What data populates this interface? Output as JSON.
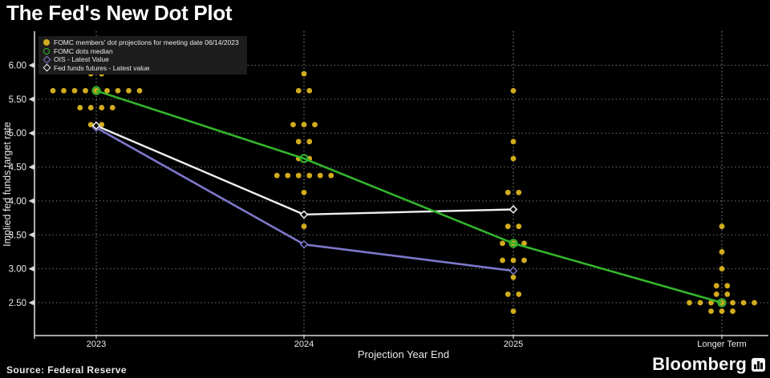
{
  "title": "The Fed's New Dot Plot",
  "source": "Source: Federal Reserve",
  "brand": {
    "name": "Bloomberg"
  },
  "colors": {
    "background": "#000000",
    "dot_yellow": "#d2ac1d",
    "median_green": "#33b52c",
    "ois_purple": "#7e78cb",
    "futures_white": "#f0f0f0",
    "gridline": "#6f6f6f",
    "column_line": "#8f8f8f",
    "axis": "#d9d9d9",
    "tick_text": "#ececec",
    "legend_bg": "#1d1d1d"
  },
  "legend": {
    "items": [
      {
        "label": "FOMC members' dot projections for meeting date 06/14/2023",
        "marker": "filled-circle",
        "color": "#d2ac1d"
      },
      {
        "label": "FOMC dots median",
        "marker": "open-circle",
        "color": "#33b52c"
      },
      {
        "label": "OIS - Latest Value",
        "marker": "open-diamond",
        "color": "#7e78cb"
      },
      {
        "label": "Fed funds futures - Latest value",
        "marker": "open-diamond",
        "color": "#f0f0f0"
      }
    ]
  },
  "chart_data": {
    "type": "scatter",
    "title": "The Fed's New Dot Plot",
    "xlabel": "Projection Year End",
    "ylabel": "Implied fed funds target rate",
    "categories": [
      "2023",
      "2024",
      "2025",
      "Longer Term"
    ],
    "y_ticks": [
      "6.00",
      "5.50",
      "5.00",
      "4.50",
      "4.00",
      "3.50",
      "3.00",
      "2.50"
    ],
    "ylim": [
      2.0,
      6.25
    ],
    "grid": "dotted horizontal gridlines at 0.50 steps, dotted vertical line per category",
    "legend_position": "top-left",
    "dot_columns": [
      {
        "category": "2023",
        "groups": [
          {
            "value": 5.875,
            "offsets": [
              -6.75,
              6.75
            ]
          },
          {
            "value": 5.625,
            "offsets": [
              -54,
              -40.5,
              -27,
              -13.5,
              0,
              13.5,
              27,
              40.5,
              54
            ]
          },
          {
            "value": 5.375,
            "offsets": [
              -20.25,
              -6.75,
              6.75,
              20.25
            ]
          },
          {
            "value": 5.125,
            "offsets": [
              -6.75,
              6.75
            ]
          }
        ]
      },
      {
        "category": "2024",
        "groups": [
          {
            "value": 5.875,
            "offsets": [
              0
            ]
          },
          {
            "value": 5.625,
            "offsets": [
              -6.75,
              6.75
            ]
          },
          {
            "value": 5.125,
            "offsets": [
              -13.5,
              0,
              13.5
            ]
          },
          {
            "value": 4.875,
            "offsets": [
              -6.75,
              6.75
            ]
          },
          {
            "value": 4.625,
            "offsets": [
              -6.75,
              6.75
            ]
          },
          {
            "value": 4.375,
            "offsets": [
              -33.75,
              -20.25,
              -6.75,
              6.75,
              20.25,
              33.75
            ]
          },
          {
            "value": 4.125,
            "offsets": [
              0
            ]
          },
          {
            "value": 3.625,
            "offsets": [
              0
            ]
          }
        ]
      },
      {
        "category": "2025",
        "groups": [
          {
            "value": 5.625,
            "offsets": [
              0
            ]
          },
          {
            "value": 4.875,
            "offsets": [
              0
            ]
          },
          {
            "value": 4.625,
            "offsets": [
              0
            ]
          },
          {
            "value": 4.125,
            "offsets": [
              -6.75,
              6.75
            ]
          },
          {
            "value": 3.875,
            "offsets": [
              0
            ]
          },
          {
            "value": 3.625,
            "offsets": [
              -6.75,
              6.75
            ]
          },
          {
            "value": 3.375,
            "offsets": [
              -13.5,
              0,
              13.5
            ]
          },
          {
            "value": 3.125,
            "offsets": [
              -13.5,
              0,
              13.5
            ]
          },
          {
            "value": 2.875,
            "offsets": [
              0
            ]
          },
          {
            "value": 2.625,
            "offsets": [
              -6.75,
              6.75
            ]
          },
          {
            "value": 2.375,
            "offsets": [
              0
            ]
          }
        ]
      },
      {
        "category": "Longer Term",
        "groups": [
          {
            "value": 3.625,
            "offsets": [
              0
            ]
          },
          {
            "value": 3.25,
            "offsets": [
              0
            ]
          },
          {
            "value": 3.0,
            "offsets": [
              0
            ]
          },
          {
            "value": 2.75,
            "offsets": [
              -6.75,
              6.75
            ]
          },
          {
            "value": 2.625,
            "offsets": [
              -6.75,
              6.75
            ]
          },
          {
            "value": 2.5,
            "offsets": [
              -40.5,
              -27,
              -13.5,
              0,
              13.5,
              27,
              40.5
            ]
          },
          {
            "value": 2.375,
            "offsets": [
              -13.5,
              0,
              13.5
            ]
          }
        ]
      }
    ],
    "series": [
      {
        "name": "FOMC dots median",
        "categories": [
          "2023",
          "2024",
          "2025",
          "Longer Term"
        ],
        "values": [
          5.625,
          4.625,
          3.375,
          2.5
        ],
        "marker": "open-circle",
        "color": "#33b52c"
      },
      {
        "name": "Fed funds futures - Latest value",
        "categories": [
          "2023",
          "2024",
          "2025"
        ],
        "values": [
          5.11,
          3.8,
          3.875
        ],
        "marker": "open-diamond",
        "color": "#f0f0f0"
      },
      {
        "name": "OIS - Latest Value",
        "categories": [
          "2023",
          "2024",
          "2025"
        ],
        "values": [
          5.08,
          3.36,
          2.97
        ],
        "marker": "open-diamond",
        "color": "#7e78cb"
      }
    ]
  }
}
